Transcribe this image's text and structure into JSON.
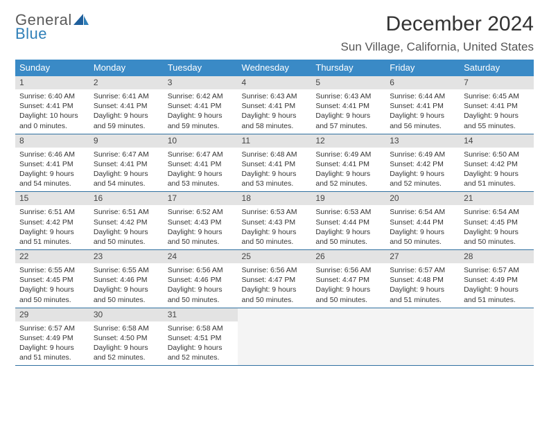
{
  "logo": {
    "top": "General",
    "bottom": "Blue"
  },
  "title": "December 2024",
  "location": "Sun Village, California, United States",
  "colors": {
    "header_bg": "#3a8ac6",
    "header_fg": "#ffffff",
    "daynum_bg": "#e3e3e3",
    "row_divider": "#2f6fa0",
    "logo_blue": "#2f7fb8",
    "logo_grey": "#5a5a5a"
  },
  "weekdays": [
    "Sunday",
    "Monday",
    "Tuesday",
    "Wednesday",
    "Thursday",
    "Friday",
    "Saturday"
  ],
  "days": [
    {
      "n": "1",
      "sr": "6:40 AM",
      "ss": "4:41 PM",
      "dl": "10 hours and 0 minutes."
    },
    {
      "n": "2",
      "sr": "6:41 AM",
      "ss": "4:41 PM",
      "dl": "9 hours and 59 minutes."
    },
    {
      "n": "3",
      "sr": "6:42 AM",
      "ss": "4:41 PM",
      "dl": "9 hours and 59 minutes."
    },
    {
      "n": "4",
      "sr": "6:43 AM",
      "ss": "4:41 PM",
      "dl": "9 hours and 58 minutes."
    },
    {
      "n": "5",
      "sr": "6:43 AM",
      "ss": "4:41 PM",
      "dl": "9 hours and 57 minutes."
    },
    {
      "n": "6",
      "sr": "6:44 AM",
      "ss": "4:41 PM",
      "dl": "9 hours and 56 minutes."
    },
    {
      "n": "7",
      "sr": "6:45 AM",
      "ss": "4:41 PM",
      "dl": "9 hours and 55 minutes."
    },
    {
      "n": "8",
      "sr": "6:46 AM",
      "ss": "4:41 PM",
      "dl": "9 hours and 54 minutes."
    },
    {
      "n": "9",
      "sr": "6:47 AM",
      "ss": "4:41 PM",
      "dl": "9 hours and 54 minutes."
    },
    {
      "n": "10",
      "sr": "6:47 AM",
      "ss": "4:41 PM",
      "dl": "9 hours and 53 minutes."
    },
    {
      "n": "11",
      "sr": "6:48 AM",
      "ss": "4:41 PM",
      "dl": "9 hours and 53 minutes."
    },
    {
      "n": "12",
      "sr": "6:49 AM",
      "ss": "4:41 PM",
      "dl": "9 hours and 52 minutes."
    },
    {
      "n": "13",
      "sr": "6:49 AM",
      "ss": "4:42 PM",
      "dl": "9 hours and 52 minutes."
    },
    {
      "n": "14",
      "sr": "6:50 AM",
      "ss": "4:42 PM",
      "dl": "9 hours and 51 minutes."
    },
    {
      "n": "15",
      "sr": "6:51 AM",
      "ss": "4:42 PM",
      "dl": "9 hours and 51 minutes."
    },
    {
      "n": "16",
      "sr": "6:51 AM",
      "ss": "4:42 PM",
      "dl": "9 hours and 50 minutes."
    },
    {
      "n": "17",
      "sr": "6:52 AM",
      "ss": "4:43 PM",
      "dl": "9 hours and 50 minutes."
    },
    {
      "n": "18",
      "sr": "6:53 AM",
      "ss": "4:43 PM",
      "dl": "9 hours and 50 minutes."
    },
    {
      "n": "19",
      "sr": "6:53 AM",
      "ss": "4:44 PM",
      "dl": "9 hours and 50 minutes."
    },
    {
      "n": "20",
      "sr": "6:54 AM",
      "ss": "4:44 PM",
      "dl": "9 hours and 50 minutes."
    },
    {
      "n": "21",
      "sr": "6:54 AM",
      "ss": "4:45 PM",
      "dl": "9 hours and 50 minutes."
    },
    {
      "n": "22",
      "sr": "6:55 AM",
      "ss": "4:45 PM",
      "dl": "9 hours and 50 minutes."
    },
    {
      "n": "23",
      "sr": "6:55 AM",
      "ss": "4:46 PM",
      "dl": "9 hours and 50 minutes."
    },
    {
      "n": "24",
      "sr": "6:56 AM",
      "ss": "4:46 PM",
      "dl": "9 hours and 50 minutes."
    },
    {
      "n": "25",
      "sr": "6:56 AM",
      "ss": "4:47 PM",
      "dl": "9 hours and 50 minutes."
    },
    {
      "n": "26",
      "sr": "6:56 AM",
      "ss": "4:47 PM",
      "dl": "9 hours and 50 minutes."
    },
    {
      "n": "27",
      "sr": "6:57 AM",
      "ss": "4:48 PM",
      "dl": "9 hours and 51 minutes."
    },
    {
      "n": "28",
      "sr": "6:57 AM",
      "ss": "4:49 PM",
      "dl": "9 hours and 51 minutes."
    },
    {
      "n": "29",
      "sr": "6:57 AM",
      "ss": "4:49 PM",
      "dl": "9 hours and 51 minutes."
    },
    {
      "n": "30",
      "sr": "6:58 AM",
      "ss": "4:50 PM",
      "dl": "9 hours and 52 minutes."
    },
    {
      "n": "31",
      "sr": "6:58 AM",
      "ss": "4:51 PM",
      "dl": "9 hours and 52 minutes."
    }
  ],
  "labels": {
    "sunrise": "Sunrise:",
    "sunset": "Sunset:",
    "daylight": "Daylight:"
  }
}
